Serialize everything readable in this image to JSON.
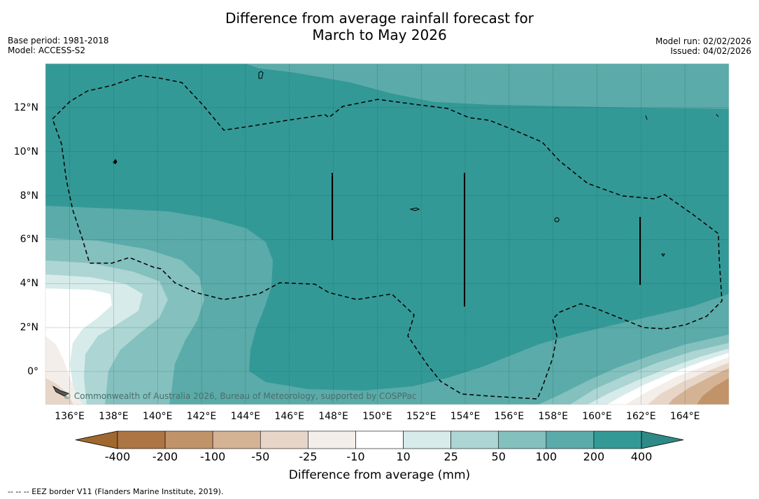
{
  "chart_data": {
    "type": "contour-map",
    "title_line1": "Difference from average rainfall forecast for",
    "title_line2": "March to May 2026",
    "base_period": "Base period: 1981-2018",
    "model": "Model: ACCESS-S2",
    "model_run": "Model run: 02/02/2026",
    "issued": "Issued: 04/02/2026",
    "copyright": "© Commonwealth of Australia 2026, Bureau of Meteorology, supported by COSPPac",
    "x_tick_labels": [
      "136°E",
      "138°E",
      "140°E",
      "142°E",
      "144°E",
      "146°E",
      "148°E",
      "150°E",
      "152°E",
      "154°E",
      "156°E",
      "158°E",
      "160°E",
      "162°E",
      "164°E"
    ],
    "x_tick_values": [
      136,
      138,
      140,
      142,
      144,
      146,
      148,
      150,
      152,
      154,
      156,
      158,
      160,
      162,
      164
    ],
    "y_tick_labels": [
      "0°",
      "2°N",
      "4°N",
      "6°N",
      "8°N",
      "10°N",
      "12°N"
    ],
    "y_tick_values": [
      0,
      2,
      4,
      6,
      8,
      10,
      12
    ],
    "lon_range": [
      134.9,
      166
    ],
    "lat_range": [
      -1.5,
      14
    ],
    "colorbar": {
      "title": "Difference from average (mm)",
      "levels": [
        "-400",
        "-200",
        "-100",
        "-50",
        "-25",
        "-10",
        "10",
        "25",
        "50",
        "100",
        "200",
        "400"
      ],
      "colors": [
        "#a0682f",
        "#ad7543",
        "#c19369",
        "#d4b395",
        "#e7d6c8",
        "#f4eeea",
        "#ffffff",
        "#d6ebea",
        "#acd5d3",
        "#83c0be",
        "#5aaba9",
        "#339996",
        "#2e8a86"
      ]
    },
    "regions": [
      {
        "level": "200 to 400",
        "description": "most of domain north of ~2°N and east of ~146°E"
      },
      {
        "level": "100 to 200",
        "description": "western band 4–7°N and northeast corner"
      },
      {
        "level": "-10 to 10",
        "description": "near 0–4°N west of 140°E"
      },
      {
        "level": "-200 to -25",
        "description": "southeast corner near 0°"
      }
    ]
  },
  "footnote": "--  --  -- EEZ border V11 (Flanders Marine Institute, 2019)."
}
